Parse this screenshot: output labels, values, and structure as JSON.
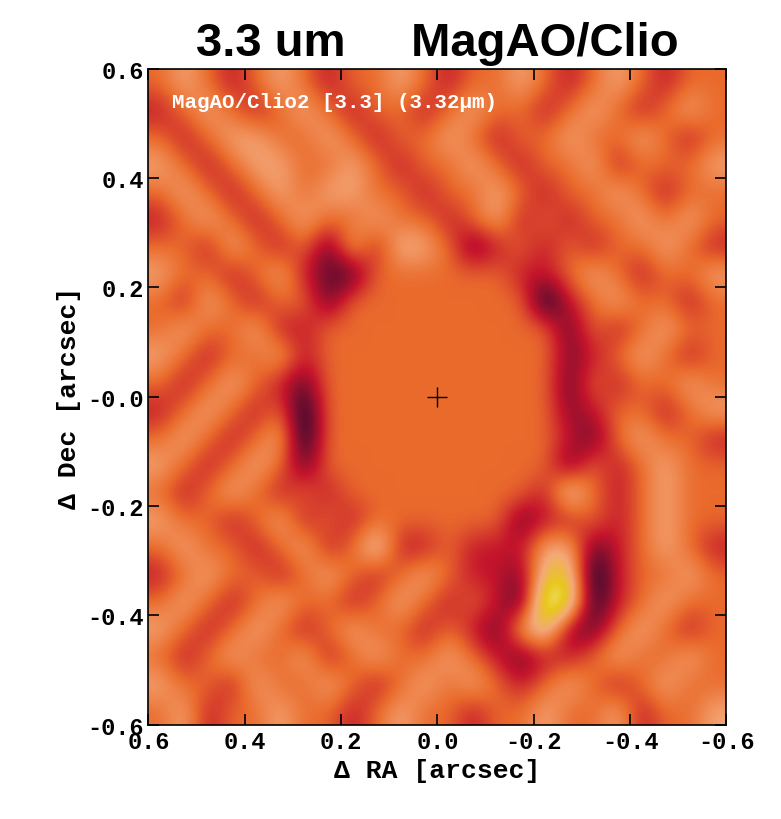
{
  "chart_data": {
    "type": "heatmap",
    "title": "3.3 um     MagAO/Clio",
    "annotation": "MagAO/Clio2 [3.3] (3.32μm)",
    "x_label": "Δ RA [arcsec]",
    "y_label": "Δ Dec [arcsec]",
    "xlim": [
      0.6,
      -0.6
    ],
    "ylim": [
      -0.6,
      0.6
    ],
    "xticks": [
      0.6,
      0.4,
      0.2,
      0.0,
      -0.2,
      -0.4,
      -0.6
    ],
    "yticks": [
      -0.6,
      -0.4,
      -0.2,
      {
        "value": 0,
        "label": "-0.0"
      },
      0.2,
      0.4,
      0.6
    ],
    "center": [
      0,
      0
    ],
    "color_range": [
      -1,
      1
    ],
    "cells": [
      [
        0,
        0.3,
        0,
        -0.3,
        0,
        0.3,
        0,
        -0.3,
        0,
        0,
        0.3,
        0,
        -0.3,
        0,
        0,
        0.3,
        0,
        -0.3,
        0,
        0.3,
        0,
        -0.3,
        0,
        0
      ],
      [
        -0.3,
        0,
        0.3,
        0,
        -0.3,
        0,
        0.3,
        0,
        -0.3,
        0,
        0,
        -0.3,
        0,
        0.3,
        0,
        0,
        -0.3,
        0,
        0.3,
        0,
        -0.3,
        0,
        0.3,
        0
      ],
      [
        0,
        -0.3,
        0,
        0.3,
        0.3,
        0,
        0,
        0.3,
        0,
        -0.3,
        0,
        0,
        0.3,
        0,
        -0.3,
        0,
        0,
        0.3,
        0,
        0,
        0.3,
        0,
        -0.3,
        0
      ],
      [
        0.3,
        0,
        -0.3,
        0,
        0.3,
        0.3,
        0,
        0,
        0.3,
        0,
        -0.3,
        0,
        0,
        0.3,
        0,
        -0.3,
        0,
        0,
        0.3,
        -0.3,
        0,
        0,
        0,
        0.3
      ],
      [
        0,
        0.3,
        0,
        -0.3,
        0,
        0.3,
        0,
        0.3,
        0.3,
        0,
        0,
        -0.3,
        0,
        0,
        0.3,
        0,
        -0.3,
        0,
        0,
        0.3,
        0,
        -0.3,
        0,
        0
      ],
      [
        -0.3,
        0,
        0.3,
        0,
        -0.3,
        0,
        0.3,
        0,
        0,
        0.3,
        0,
        0,
        -0.3,
        0,
        0.3,
        -0.3,
        0,
        -0.3,
        0,
        0,
        0.3,
        0,
        0.3,
        0
      ],
      [
        0,
        0,
        -0.3,
        0.3,
        0,
        -0.3,
        0,
        -0.6,
        0.3,
        -0.3,
        0.4,
        0.3,
        0,
        -0.6,
        -0.3,
        0,
        -0.3,
        0,
        -0.3,
        0,
        0,
        0.3,
        0,
        -0.3
      ],
      [
        0.3,
        0,
        0,
        -0.3,
        0,
        0.3,
        -0.3,
        -0.6,
        -0.7,
        0,
        0,
        0,
        0,
        0,
        0,
        -0.3,
        -0.3,
        0,
        0.3,
        0,
        -0.3,
        0,
        0,
        0.3
      ],
      [
        0,
        -0.3,
        0.3,
        0,
        -0.3,
        0,
        0,
        -0.6,
        0,
        0,
        0,
        0,
        0,
        0,
        0,
        0,
        -0.9,
        -0.3,
        0,
        0.3,
        0,
        0,
        -0.3,
        0
      ],
      [
        0,
        0.3,
        0,
        0,
        0.3,
        -0.3,
        -0.3,
        0,
        0,
        0,
        0,
        0,
        0,
        0,
        0,
        0,
        0,
        -0.6,
        0,
        -0.3,
        0,
        0.3,
        0,
        0
      ],
      [
        0.3,
        0,
        -0.3,
        0,
        0,
        0.3,
        -0.3,
        0,
        0,
        0,
        0,
        0,
        0,
        0,
        0,
        0,
        0,
        -0.5,
        -0.3,
        0,
        0.3,
        0,
        -0.3,
        0
      ],
      [
        0,
        -0.3,
        0,
        0.3,
        0,
        -0.3,
        -0.6,
        0,
        0,
        0,
        0,
        0,
        0,
        0,
        0,
        0,
        0,
        -0.6,
        0,
        -0.3,
        0,
        0,
        0.3,
        0
      ],
      [
        -0.3,
        0,
        0.3,
        0,
        -0.3,
        0,
        -0.9,
        0,
        0,
        0,
        0,
        0,
        0,
        0,
        0,
        0,
        0,
        -0.5,
        -0.3,
        0,
        0,
        -0.3,
        0,
        0.3
      ],
      [
        0,
        0.3,
        0,
        -0.3,
        0,
        0.3,
        -0.9,
        0,
        0,
        0,
        0,
        0,
        0,
        0,
        0,
        0,
        0,
        -0.3,
        -0.6,
        0,
        0.3,
        0,
        0,
        -0.3
      ],
      [
        0.3,
        0,
        -0.3,
        0,
        0.3,
        0,
        -0.6,
        0,
        0,
        0,
        0,
        0,
        0,
        0,
        0,
        0,
        0,
        -0.6,
        0,
        -0.3,
        0,
        0.3,
        0,
        0
      ],
      [
        0,
        -0.3,
        0,
        0.3,
        0,
        -0.3,
        0,
        -0.3,
        0,
        0,
        0,
        0,
        0,
        0,
        0,
        0,
        -0.3,
        0.6,
        0,
        -0.3,
        0,
        0.3,
        0,
        0
      ],
      [
        0.3,
        0,
        0,
        -0.3,
        0,
        0.3,
        -0.3,
        0,
        -0.3,
        0,
        0,
        0,
        0,
        0,
        0,
        -0.6,
        -0.3,
        -0.3,
        0,
        -0.3,
        0,
        0.3,
        0,
        0
      ],
      [
        0,
        0.3,
        0,
        0,
        -0.3,
        0,
        0.3,
        -0.3,
        0,
        0.6,
        -0.3,
        -0.3,
        0,
        -0.3,
        -0.3,
        -0.3,
        0.3,
        0.3,
        -0.6,
        -0.3,
        0,
        0.3,
        0,
        -0.3
      ],
      [
        -0.3,
        0,
        0.3,
        0,
        0,
        -0.3,
        0,
        0.3,
        0,
        -0.3,
        0,
        0.3,
        0,
        -0.3,
        -0.3,
        -0.5,
        0.5,
        0.6,
        -0.9,
        -0.3,
        0,
        0,
        0.3,
        0
      ],
      [
        0,
        0.3,
        0,
        -0.3,
        0,
        0.3,
        0,
        0,
        -0.3,
        0,
        0.3,
        0,
        -0.3,
        0,
        -0.3,
        -0.7,
        1.0,
        0.8,
        -0.8,
        -0.3,
        0,
        0.3,
        0,
        0
      ],
      [
        0.3,
        0,
        -0.3,
        0,
        0.3,
        0,
        -0.3,
        0,
        0.3,
        0,
        0,
        -0.3,
        0,
        -0.3,
        -0.6,
        0.3,
        0.6,
        -0.5,
        -0.6,
        0,
        0.3,
        0,
        -0.3,
        0
      ],
      [
        0,
        -0.3,
        0,
        0.3,
        0,
        0,
        0.3,
        -0.3,
        0,
        0.3,
        0,
        0,
        0.3,
        0,
        -0.3,
        -0.6,
        -0.3,
        -0.3,
        0,
        0.3,
        0,
        0,
        0.3,
        0
      ],
      [
        0.3,
        0,
        0,
        -0.3,
        0.3,
        0,
        0,
        0.3,
        0,
        -0.3,
        0,
        0.3,
        0,
        0.3,
        0,
        -0.3,
        0,
        0.3,
        0,
        -0.3,
        0,
        0.3,
        0,
        0
      ],
      [
        0,
        0.3,
        -0.3,
        0,
        0,
        0.3,
        0,
        0,
        -0.3,
        0,
        0.3,
        0,
        0,
        -0.3,
        0,
        0,
        0.3,
        0,
        0,
        0.3,
        -0.3,
        0,
        0,
        0.3
      ]
    ]
  }
}
